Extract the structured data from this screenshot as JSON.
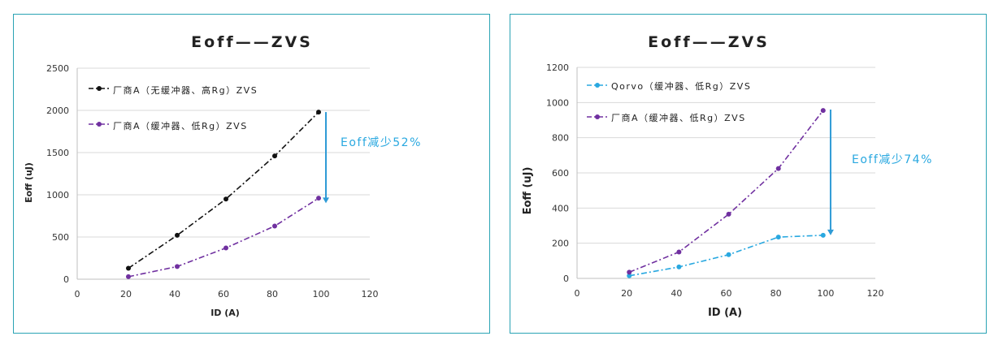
{
  "colors": {
    "border": "#2aa3b4",
    "grid": "#d9d9d9",
    "black_series": "#111111",
    "purple_series": "#7030a0",
    "cyan_series": "#29a8e0",
    "arrow": "#2f9bd6",
    "annotation": "#29a8e0"
  },
  "chart_data": [
    {
      "type": "line",
      "title": "Eoff——ZVS",
      "xlabel": "ID (A)",
      "ylabel": "Eoff (uJ)",
      "xlim": [
        0,
        120
      ],
      "ylim": [
        0,
        2500
      ],
      "xticks": [
        "0",
        "20",
        "40",
        "60",
        "80",
        "100",
        "120"
      ],
      "yticks": [
        "0",
        "500",
        "1000",
        "1500",
        "2000",
        "2500"
      ],
      "grid": "horizontal",
      "legend_position": "top-left",
      "series": [
        {
          "name": "厂商A（无缓冲器、高Rg）ZVS",
          "color": "#111111",
          "x": [
            21,
            41,
            61,
            81,
            99
          ],
          "y": [
            130,
            520,
            950,
            1460,
            1980
          ]
        },
        {
          "name": "厂商A（缓冲器、低Rg）ZVS",
          "color": "#7030a0",
          "x": [
            21,
            41,
            61,
            81,
            99
          ],
          "y": [
            30,
            150,
            370,
            630,
            960
          ]
        }
      ],
      "annotation": {
        "text": "Eoff减少52%",
        "arrow_x": 102,
        "arrow_from": 1980,
        "arrow_to": 900
      }
    },
    {
      "type": "line",
      "title": "Eoff——ZVS",
      "xlabel": "ID (A)",
      "ylabel": "Eoff (uJ)",
      "xlim": [
        0,
        120
      ],
      "ylim": [
        0,
        1200
      ],
      "xticks": [
        "0",
        "20",
        "40",
        "60",
        "80",
        "100",
        "120"
      ],
      "yticks": [
        "0",
        "200",
        "400",
        "600",
        "800",
        "1000",
        "1200"
      ],
      "grid": "horizontal",
      "legend_position": "top-left",
      "series": [
        {
          "name": "Qorvo（缓冲器、低Rg）ZVS",
          "color": "#29a8e0",
          "x": [
            21,
            41,
            61,
            81,
            99
          ],
          "y": [
            15,
            65,
            135,
            235,
            245
          ]
        },
        {
          "name": "厂商A（缓冲器、低Rg）ZVS",
          "color": "#7030a0",
          "x": [
            21,
            41,
            61,
            81,
            99
          ],
          "y": [
            35,
            150,
            365,
            625,
            955
          ]
        }
      ],
      "annotation": {
        "text": "Eoff减少74%",
        "arrow_x": 102,
        "arrow_from": 960,
        "arrow_to": 245
      }
    }
  ]
}
